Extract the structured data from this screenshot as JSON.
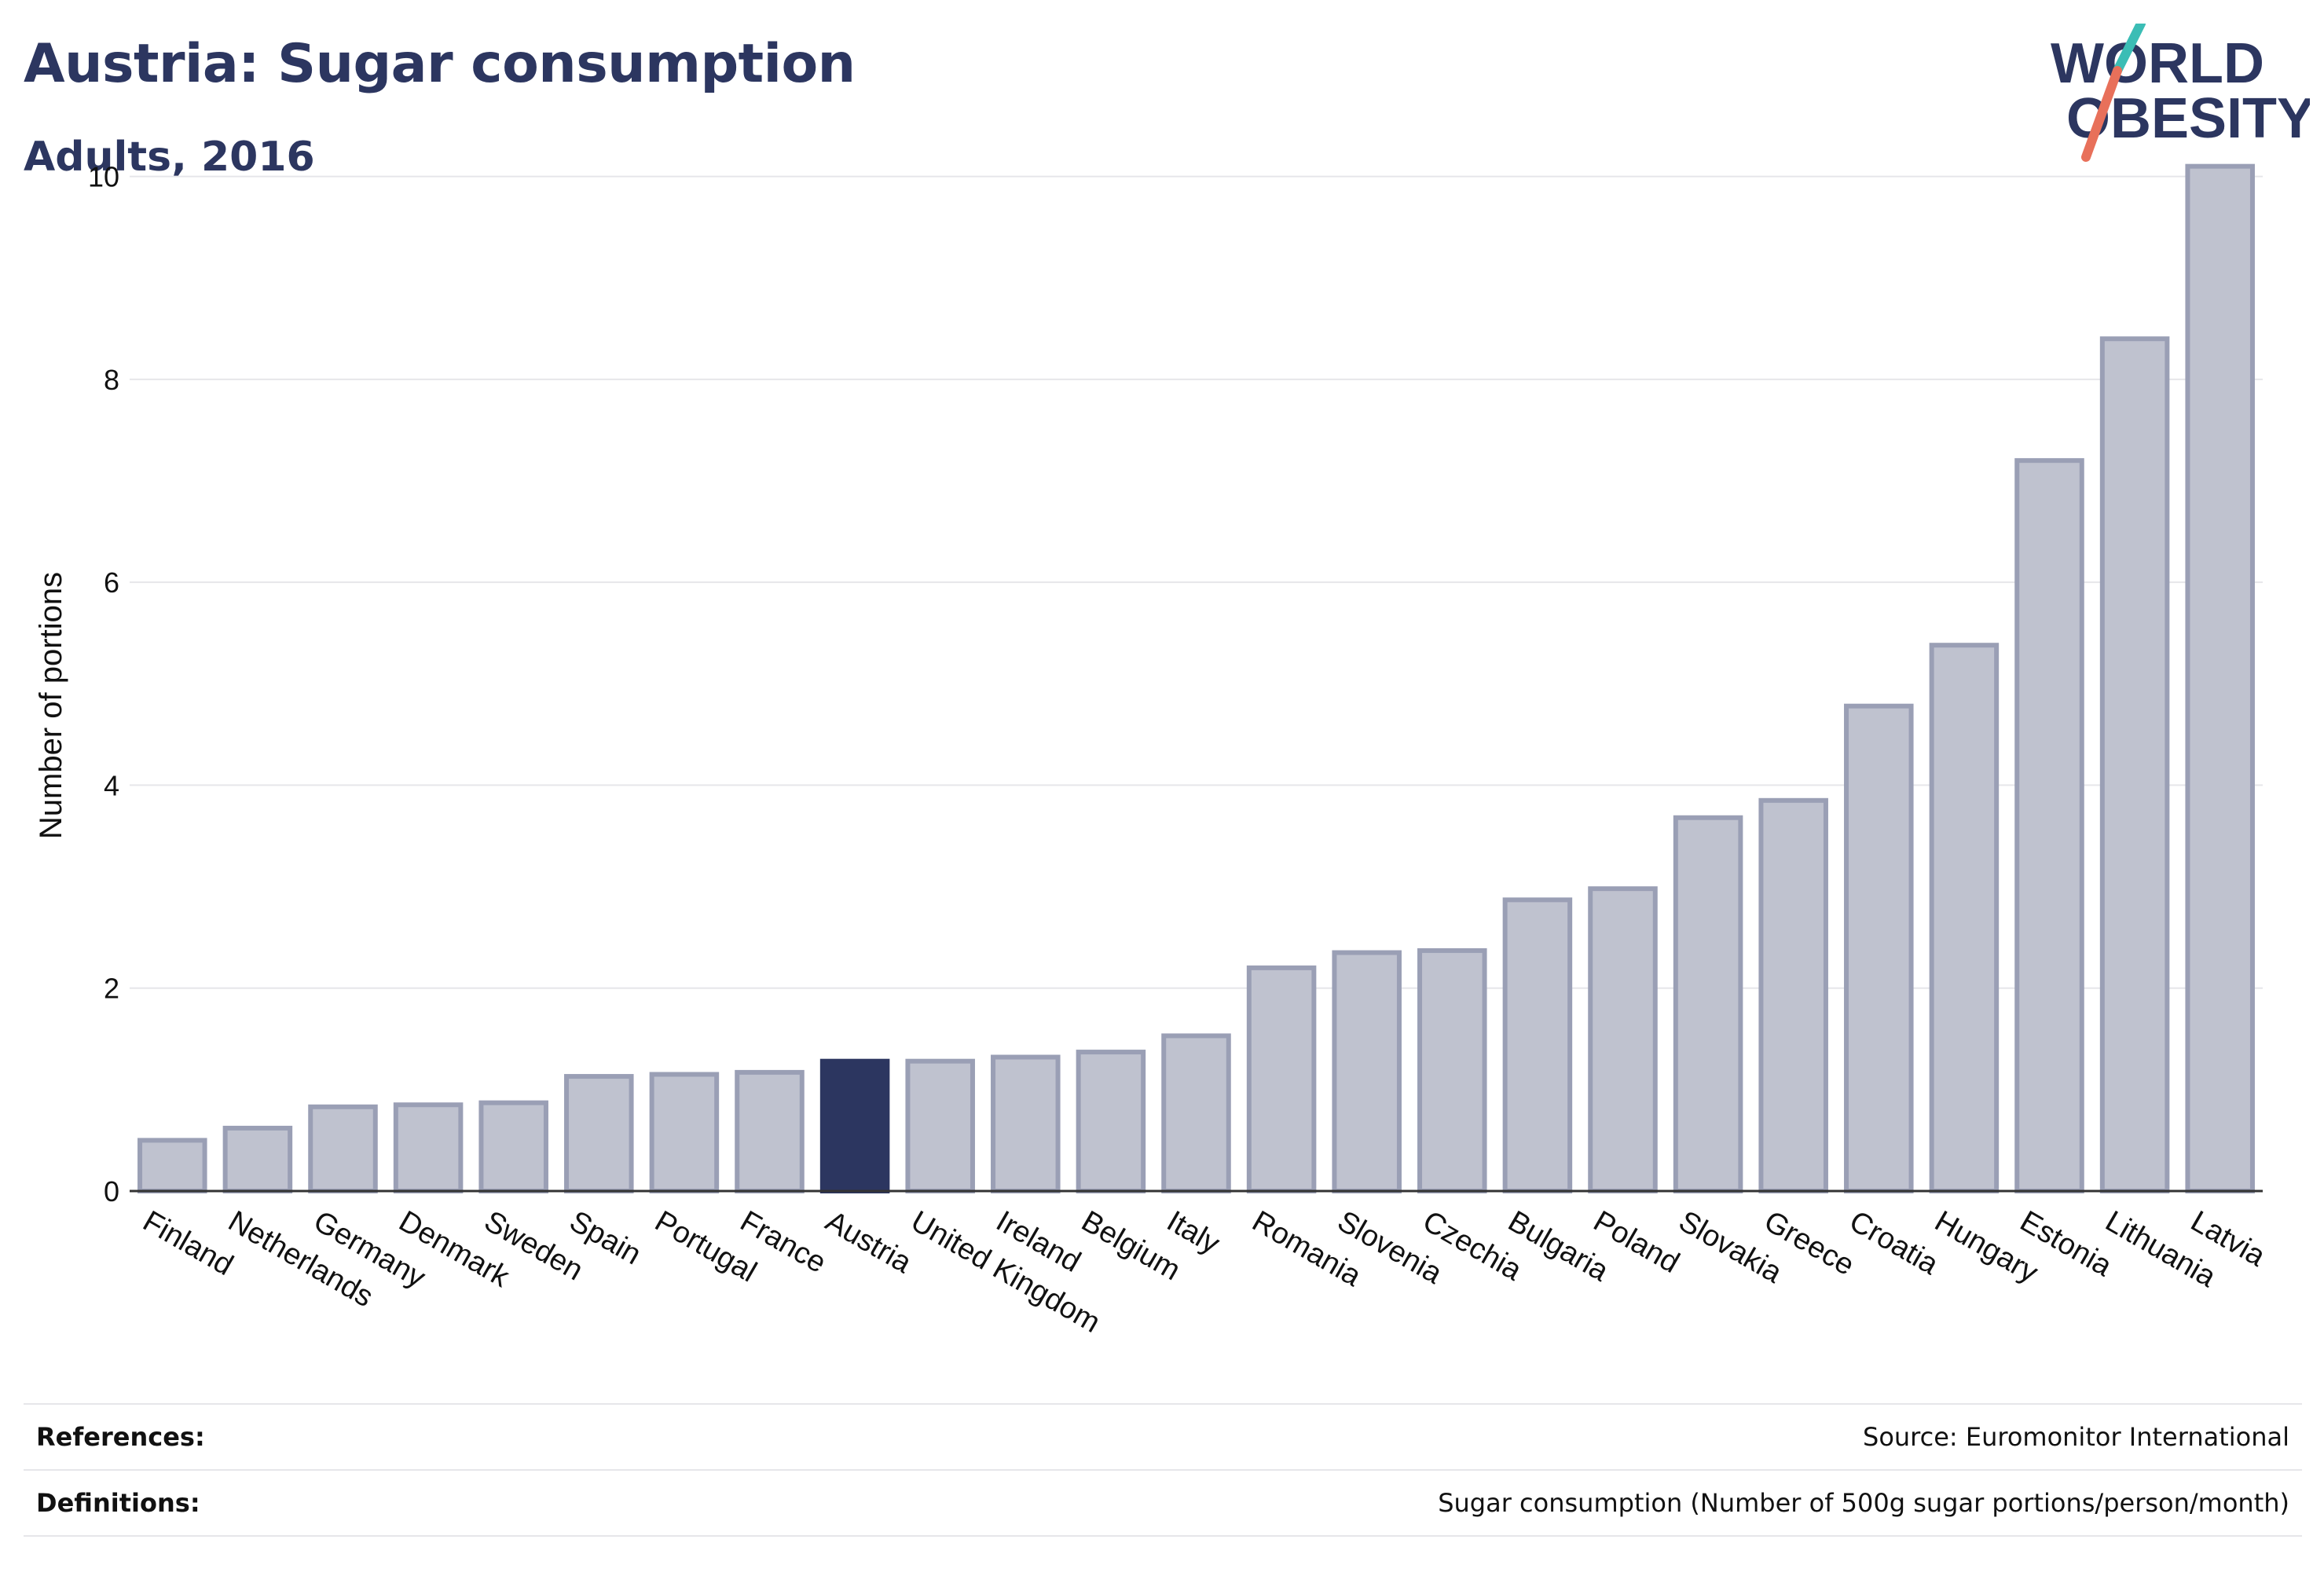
{
  "header": {
    "title": "Austria: Sugar consumption",
    "subtitle": "Adults, 2016"
  },
  "logo": {
    "line1": "WORLD",
    "line2": "OBESITY",
    "colors": {
      "text": "#2c3660",
      "slash_teal": "#3bbdb5",
      "slash_red": "#e8705a"
    }
  },
  "chart_data": {
    "type": "bar",
    "title": "Austria: Sugar consumption",
    "subtitle": "Adults, 2016",
    "xlabel": "",
    "ylabel": "Number of portions",
    "ylim": [
      0,
      10.5
    ],
    "yticks": [
      0,
      2,
      4,
      6,
      8,
      10
    ],
    "grid": true,
    "highlight": "Austria",
    "colors": {
      "bar": "#bfc2cf",
      "bar_edge": "#9a9fb5",
      "highlight": "#2c3660",
      "grid": "#e6e6ea"
    },
    "categories": [
      "Finland",
      "Netherlands",
      "Germany",
      "Denmark",
      "Sweden",
      "Spain",
      "Portugal",
      "France",
      "Austria",
      "United Kingdom",
      "Ireland",
      "Belgium",
      "Italy",
      "Romania",
      "Slovenia",
      "Czechia",
      "Bulgaria",
      "Poland",
      "Slovakia",
      "Greece",
      "Croatia",
      "Hungary",
      "Estonia",
      "Lithuania",
      "Latvia"
    ],
    "values": [
      0.5,
      0.62,
      0.83,
      0.85,
      0.87,
      1.13,
      1.15,
      1.17,
      1.28,
      1.28,
      1.32,
      1.37,
      1.53,
      2.2,
      2.35,
      2.37,
      2.87,
      2.98,
      3.68,
      3.85,
      4.78,
      5.38,
      7.2,
      8.4,
      10.1
    ]
  },
  "references": {
    "references_label": "References:",
    "references_value": "Source: Euromonitor International",
    "definitions_label": "Definitions:",
    "definitions_value": "Sugar consumption (Number of 500g sugar portions/person/month)"
  }
}
